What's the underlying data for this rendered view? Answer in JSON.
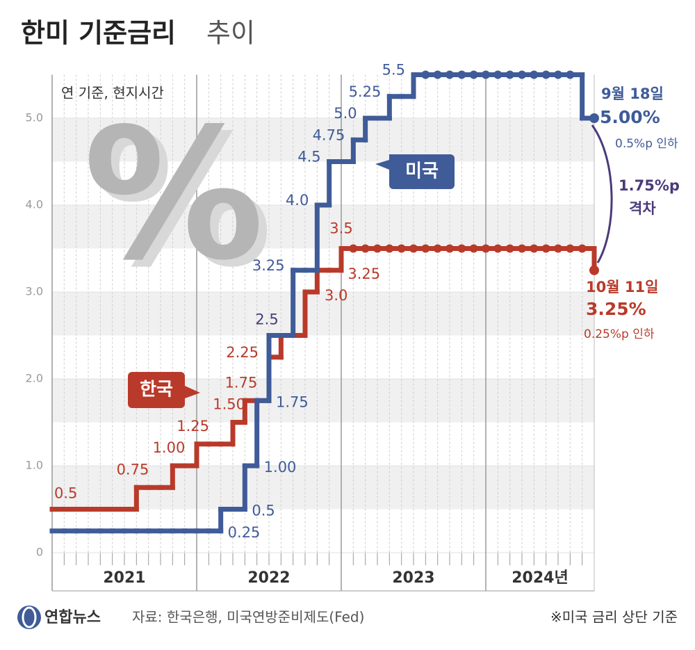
{
  "chart_data": {
    "type": "step",
    "title": "한미 기준금리",
    "title_light": "추이",
    "subtitle": "연 기준, 현지시간",
    "watermark": "%",
    "categories": [
      null,
      null,
      null,
      null,
      null,
      null,
      null,
      null,
      null,
      null,
      null,
      null,
      null,
      null,
      null,
      null,
      null,
      null,
      null,
      null,
      null,
      null,
      null,
      null,
      null,
      null,
      null,
      null,
      null,
      null,
      null,
      null,
      null,
      null,
      null,
      null,
      null,
      null,
      null,
      null,
      null,
      null,
      null,
      null,
      null,
      null
    ],
    "year_labels": [
      "2021",
      "2022",
      "2023",
      "2024년"
    ],
    "ylim": [
      0,
      5.5
    ],
    "yticks": [
      0,
      {
        "value": 1,
        "label": "1.0"
      },
      {
        "value": 2,
        "label": "2.0"
      },
      {
        "value": 3,
        "label": "3.0"
      },
      {
        "value": 4,
        "label": "4.0"
      },
      {
        "value": 5,
        "label": "5.0"
      }
    ],
    "grid": true,
    "series": [
      {
        "name": "한국",
        "color": "#b93a2a",
        "values": [
          0.5,
          0.5,
          0.5,
          0.5,
          0.5,
          0.5,
          0.5,
          0.75,
          0.75,
          0.75,
          1.0,
          1.0,
          1.25,
          1.25,
          1.25,
          1.5,
          1.75,
          1.75,
          2.25,
          2.5,
          2.5,
          3.0,
          3.25,
          3.25,
          3.5,
          3.5,
          3.5,
          3.5,
          3.5,
          3.5,
          3.5,
          3.5,
          3.5,
          3.5,
          3.5,
          3.5,
          3.5,
          3.5,
          3.5,
          3.5,
          3.5,
          3.5,
          3.5,
          3.5,
          3.5,
          3.25
        ],
        "value_labels": [
          "0.5",
          null,
          null,
          null,
          null,
          null,
          null,
          "0.75",
          null,
          null,
          "1.00",
          null,
          "1.25",
          null,
          null,
          "1.50",
          "1.75",
          null,
          "2.25",
          null,
          null,
          "3.0",
          "3.25",
          null,
          "3.5",
          null,
          null,
          null,
          null,
          null,
          null,
          null,
          null,
          null,
          null,
          null,
          null,
          null,
          null,
          null,
          null,
          null,
          null,
          null,
          null,
          null
        ]
      },
      {
        "name": "미국",
        "color": "#3f5b98",
        "values": [
          0.25,
          0.25,
          0.25,
          0.25,
          0.25,
          0.25,
          0.25,
          0.25,
          0.25,
          0.25,
          0.25,
          0.25,
          0.25,
          0.25,
          0.5,
          0.5,
          1.0,
          1.75,
          2.5,
          2.5,
          3.25,
          3.25,
          4.0,
          4.5,
          4.5,
          4.75,
          5.0,
          5.0,
          5.25,
          5.25,
          5.5,
          5.5,
          5.5,
          5.5,
          5.5,
          5.5,
          5.5,
          5.5,
          5.5,
          5.5,
          5.5,
          5.5,
          5.5,
          5.5,
          5.0,
          5.0
        ],
        "value_labels": [
          "0.25",
          null,
          null,
          null,
          null,
          null,
          null,
          null,
          null,
          null,
          null,
          null,
          null,
          null,
          "0.5",
          null,
          "1.00",
          "1.75",
          "2.5",
          null,
          "3.25",
          null,
          "4.0",
          "4.5",
          null,
          "4.75",
          "5.0",
          null,
          "5.25",
          null,
          "5.5",
          null,
          null,
          null,
          null,
          null,
          null,
          null,
          null,
          null,
          null,
          null,
          null,
          null,
          null,
          null
        ]
      }
    ],
    "annotations": {
      "us_date": "9월 18일",
      "us_rate": "5.00%",
      "us_cut": "0.5%p 인하",
      "kr_date": "10월 11일",
      "kr_rate": "3.25%",
      "kr_cut": "0.25%p 인하",
      "gap": "1.75%p",
      "gap_word": "격차",
      "note": "※미국 금리 상단 기준"
    },
    "source": "자료: 한국은행, 미국연방준비제도(Fed)",
    "brand": "연합뉴스"
  }
}
